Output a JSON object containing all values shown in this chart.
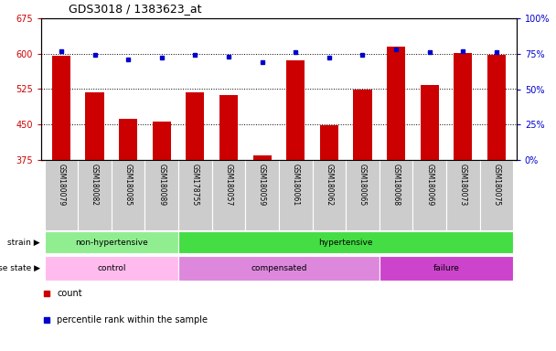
{
  "title": "GDS3018 / 1383623_at",
  "samples": [
    "GSM180079",
    "GSM180082",
    "GSM180085",
    "GSM180089",
    "GSM178755",
    "GSM180057",
    "GSM180059",
    "GSM180061",
    "GSM180062",
    "GSM180065",
    "GSM180068",
    "GSM180069",
    "GSM180073",
    "GSM180075"
  ],
  "counts": [
    595,
    518,
    462,
    456,
    518,
    512,
    385,
    585,
    448,
    524,
    615,
    533,
    602,
    597
  ],
  "percentiles": [
    77,
    74,
    71,
    72,
    74,
    73,
    69,
    76,
    72,
    74,
    78,
    76,
    77,
    76
  ],
  "ylim_left": [
    375,
    675
  ],
  "ylim_right": [
    0,
    100
  ],
  "yticks_left": [
    375,
    450,
    525,
    600,
    675
  ],
  "yticks_right": [
    0,
    25,
    50,
    75,
    100
  ],
  "bar_color": "#cc0000",
  "dot_color": "#0000cc",
  "strain_groups": [
    {
      "label": "non-hypertensive",
      "start": 0,
      "end": 4,
      "color": "#90ee90"
    },
    {
      "label": "hypertensive",
      "start": 4,
      "end": 14,
      "color": "#44dd44"
    }
  ],
  "disease_groups": [
    {
      "label": "control",
      "start": 0,
      "end": 4,
      "color": "#ffbbee"
    },
    {
      "label": "compensated",
      "start": 4,
      "end": 10,
      "color": "#dd88dd"
    },
    {
      "label": "failure",
      "start": 10,
      "end": 14,
      "color": "#cc44cc"
    }
  ],
  "strain_label": "strain",
  "disease_label": "disease state",
  "legend_count": "count",
  "legend_percentile": "percentile rank within the sample",
  "tick_bg_color": "#cccccc",
  "fig_width": 6.08,
  "fig_height": 3.84
}
